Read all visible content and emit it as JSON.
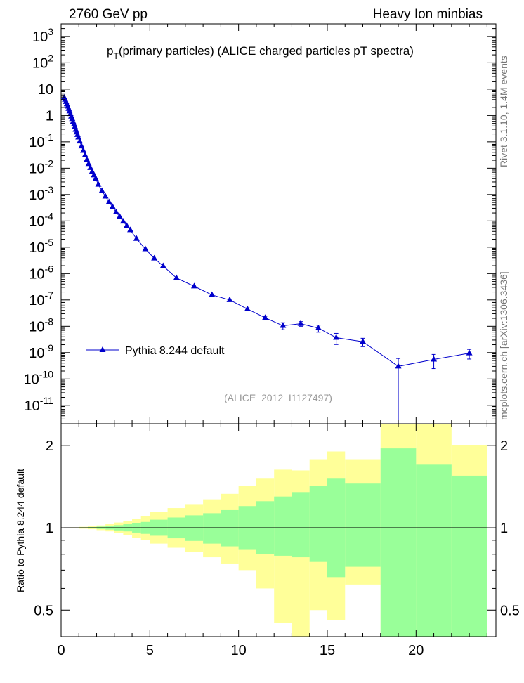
{
  "header": {
    "left": "2760 GeV pp",
    "right": "Heavy Ion minbias"
  },
  "side": {
    "rivet": "Rivet 3.1.10,  1.4M events",
    "mcplots": "mcplots.cern.ch [arXiv:1306.3436]"
  },
  "colors": {
    "series": "#0000cc",
    "band_inner": "#99ff99",
    "band_outer": "#ffff99"
  },
  "chart_data": [
    {
      "type": "line",
      "title_main": "p",
      "title_sub": "T",
      "title_rest": "(primary particles) (ALICE charged particles pT spectra)",
      "analysis_tag": "(ALICE_2012_I1127497)",
      "scale": "log",
      "ylim": [
        2e-12,
        3000
      ],
      "xlim": [
        0,
        24.5
      ],
      "y_tick_labels": [
        "10^-11",
        "10^-10",
        "10^-9",
        "10^-8",
        "10^-7",
        "10^-6",
        "10^-5",
        "10^-4",
        "10^-3",
        "10^-2",
        "10^-1",
        "1",
        "10",
        "10^2",
        "10^3"
      ],
      "legend_position": "left-middle",
      "series": [
        {
          "name": "Pythia 8.244 default",
          "x": [
            0.175,
            0.225,
            0.275,
            0.325,
            0.375,
            0.425,
            0.475,
            0.525,
            0.575,
            0.625,
            0.675,
            0.725,
            0.775,
            0.825,
            0.875,
            0.925,
            0.975,
            1.05,
            1.15,
            1.25,
            1.35,
            1.45,
            1.55,
            1.65,
            1.75,
            1.85,
            1.95,
            2.1,
            2.3,
            2.5,
            2.7,
            2.9,
            3.1,
            3.3,
            3.5,
            3.7,
            3.9,
            4.25,
            4.75,
            5.25,
            5.75,
            6.5,
            7.5,
            8.5,
            9.5,
            10.5,
            11.5,
            12.5,
            13.5,
            14.5,
            15.5,
            17.0,
            19.0,
            21.0,
            23.0
          ],
          "y": [
            4.8,
            4.0,
            3.3,
            2.7,
            2.2,
            1.8,
            1.45,
            1.15,
            0.92,
            0.74,
            0.58,
            0.46,
            0.37,
            0.29,
            0.23,
            0.185,
            0.148,
            0.105,
            0.068,
            0.046,
            0.031,
            0.021,
            0.0145,
            0.0103,
            0.0074,
            0.0054,
            0.004,
            0.0024,
            0.00138,
            0.00085,
            0.00052,
            0.00034,
            0.000215,
            0.000145,
            9.55e-05,
            6.5e-05,
            4.5e-05,
            2.1e-05,
            8.5e-06,
            3.8e-06,
            1.95e-06,
            6.8e-07,
            3.3e-07,
            1.55e-07,
            1e-07,
            4.5e-08,
            2.1e-08,
            1.05e-08,
            1.25e-08,
            8.5e-09,
            3.7e-09,
            2.6e-09,
            3e-10,
            5.5e-10,
            9.5e-10
          ],
          "yerr_rel_lo": [
            0,
            0,
            0,
            0,
            0,
            0,
            0,
            0,
            0,
            0,
            0,
            0,
            0,
            0,
            0,
            0,
            0,
            0,
            0,
            0,
            0,
            0,
            0,
            0,
            0,
            0,
            0,
            0,
            0,
            0,
            0,
            0,
            0,
            0,
            0,
            0,
            0,
            0,
            0,
            0,
            0,
            0,
            0,
            0,
            0,
            0.1,
            0.15,
            0.3,
            0.2,
            0.3,
            0.45,
            0.35,
            1.0,
            0.55,
            0.4
          ],
          "yerr_rel_hi": [
            0,
            0,
            0,
            0,
            0,
            0,
            0,
            0,
            0,
            0,
            0,
            0,
            0,
            0,
            0,
            0,
            0,
            0,
            0,
            0,
            0,
            0,
            0,
            0,
            0,
            0,
            0,
            0,
            0,
            0,
            0,
            0,
            0,
            0,
            0,
            0,
            0,
            0,
            0,
            0,
            0,
            0,
            0,
            0,
            0,
            0.1,
            0.15,
            0.3,
            0.2,
            0.3,
            0.45,
            0.35,
            1.0,
            0.55,
            0.4
          ]
        }
      ]
    },
    {
      "type": "area",
      "ylabel": "Ratio to Pythia 8.244 default",
      "ylim": [
        0.4,
        2.4
      ],
      "xlim": [
        0,
        24.5
      ],
      "x_tick_labels": [
        "0",
        "5",
        "10",
        "15",
        "20"
      ],
      "y_tick_labels": [
        "0.5",
        "1",
        "2"
      ],
      "bins_x": [
        0.15,
        0.5,
        1.0,
        1.5,
        2.0,
        2.5,
        3.0,
        3.5,
        4.0,
        4.5,
        5.0,
        6.0,
        7.0,
        8.0,
        9.0,
        10.0,
        11.0,
        12.0,
        13.0,
        14.0,
        15.0,
        16.0,
        18.0,
        20.0,
        22.0,
        24.0
      ],
      "inner_band": {
        "lo": [
          0.999,
          0.998,
          0.996,
          0.994,
          0.99,
          0.985,
          0.978,
          0.97,
          0.96,
          0.95,
          0.935,
          0.915,
          0.895,
          0.875,
          0.855,
          0.83,
          0.8,
          0.79,
          0.78,
          0.75,
          0.66,
          0.72,
          0.4,
          0.4,
          0.4
        ],
        "hi": [
          1.001,
          1.002,
          1.004,
          1.006,
          1.01,
          1.015,
          1.022,
          1.03,
          1.04,
          1.05,
          1.07,
          1.09,
          1.11,
          1.13,
          1.16,
          1.2,
          1.25,
          1.3,
          1.35,
          1.42,
          1.52,
          1.45,
          1.95,
          1.7,
          1.55
        ]
      },
      "outer_band": {
        "lo": [
          0.998,
          0.996,
          0.992,
          0.988,
          0.98,
          0.97,
          0.955,
          0.94,
          0.92,
          0.9,
          0.875,
          0.845,
          0.815,
          0.78,
          0.74,
          0.7,
          0.6,
          0.45,
          0.38,
          0.5,
          0.46,
          0.62,
          0.4,
          0.4,
          0.44
        ],
        "hi": [
          1.002,
          1.004,
          1.008,
          1.012,
          1.02,
          1.03,
          1.045,
          1.06,
          1.08,
          1.1,
          1.14,
          1.18,
          1.22,
          1.27,
          1.33,
          1.42,
          1.52,
          1.63,
          1.62,
          1.78,
          1.9,
          1.78,
          2.4,
          2.4,
          2.0
        ]
      }
    }
  ]
}
